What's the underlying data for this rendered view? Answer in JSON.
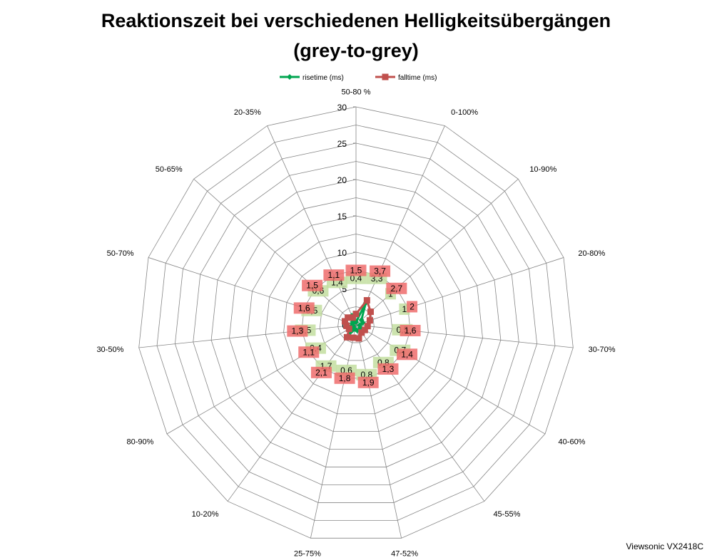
{
  "title_line1": "Reaktionszeit bei verschiedenen Helligkeitsübergängen",
  "title_line2": "(grey-to-grey)",
  "footer": "Viewsonic VX2418C",
  "chart_data": {
    "type": "radar",
    "categories": [
      "50-80 %",
      "0-100%",
      "10-90%",
      "20-80%",
      "30-70%",
      "40-60%",
      "45-55%",
      "47-52%",
      "25-75%",
      "10-20%",
      "80-90%",
      "30-50%",
      "50-70%",
      "50-65%",
      "20-35%"
    ],
    "rlim": [
      0,
      30
    ],
    "rticks": [
      0,
      5,
      10,
      15,
      20,
      25,
      30
    ],
    "series": [
      {
        "name": "risetime (ms)",
        "color": "#00a650",
        "label_bg": "#c3dea0",
        "values": [
          0.4,
          3.3,
          1,
          1,
          0.5,
          0.7,
          0.8,
          0.8,
          0.6,
          1.7,
          0.4,
          0.5,
          0.5,
          0.6,
          1.4
        ],
        "labels": [
          "0,4",
          "3,3",
          "1",
          "1",
          "0,5",
          "0,7",
          "0,8",
          "0,8",
          "0,6",
          "1,7",
          "0,4",
          "0,5",
          "0,5",
          "0,6",
          "1,4"
        ]
      },
      {
        "name": "falltime (ms)",
        "color": "#c0504d",
        "label_bg": "#ef6c6c",
        "values": [
          1.5,
          3.7,
          2.7,
          2,
          1.6,
          1.4,
          1.3,
          1.9,
          1.8,
          2.1,
          1.1,
          1.3,
          1.6,
          1.5,
          1.1
        ],
        "labels": [
          "1,5",
          "3,7",
          "2,7",
          "2",
          "1,6",
          "1,4",
          "1,3",
          "1,9",
          "1,8",
          "2,1",
          "1,1",
          "1,3",
          "1,6",
          "1,5",
          "1,1"
        ]
      }
    ],
    "legend_position": "top",
    "grid": true
  }
}
